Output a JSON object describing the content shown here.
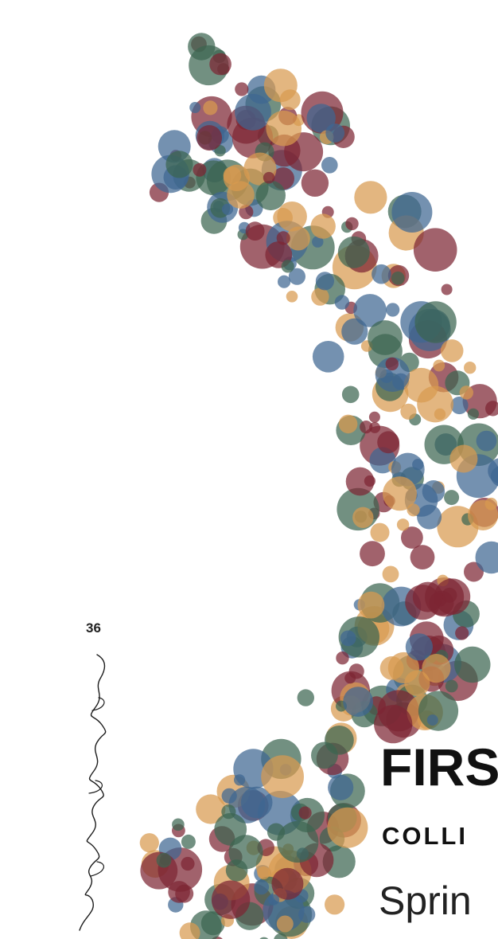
{
  "page_number": "36",
  "signature": {
    "kind": "handwritten-signature",
    "text": "Mahsa Mahbood"
  },
  "cover": {
    "title": "FIRS",
    "subtitle": "COLLI",
    "season": "Sprin"
  },
  "palette": {
    "maroon": "#7d2533",
    "orange": "#d89a4f",
    "blue": "#3f6692",
    "green": "#3b6551",
    "background": "#ffffff",
    "text": "#111111"
  }
}
